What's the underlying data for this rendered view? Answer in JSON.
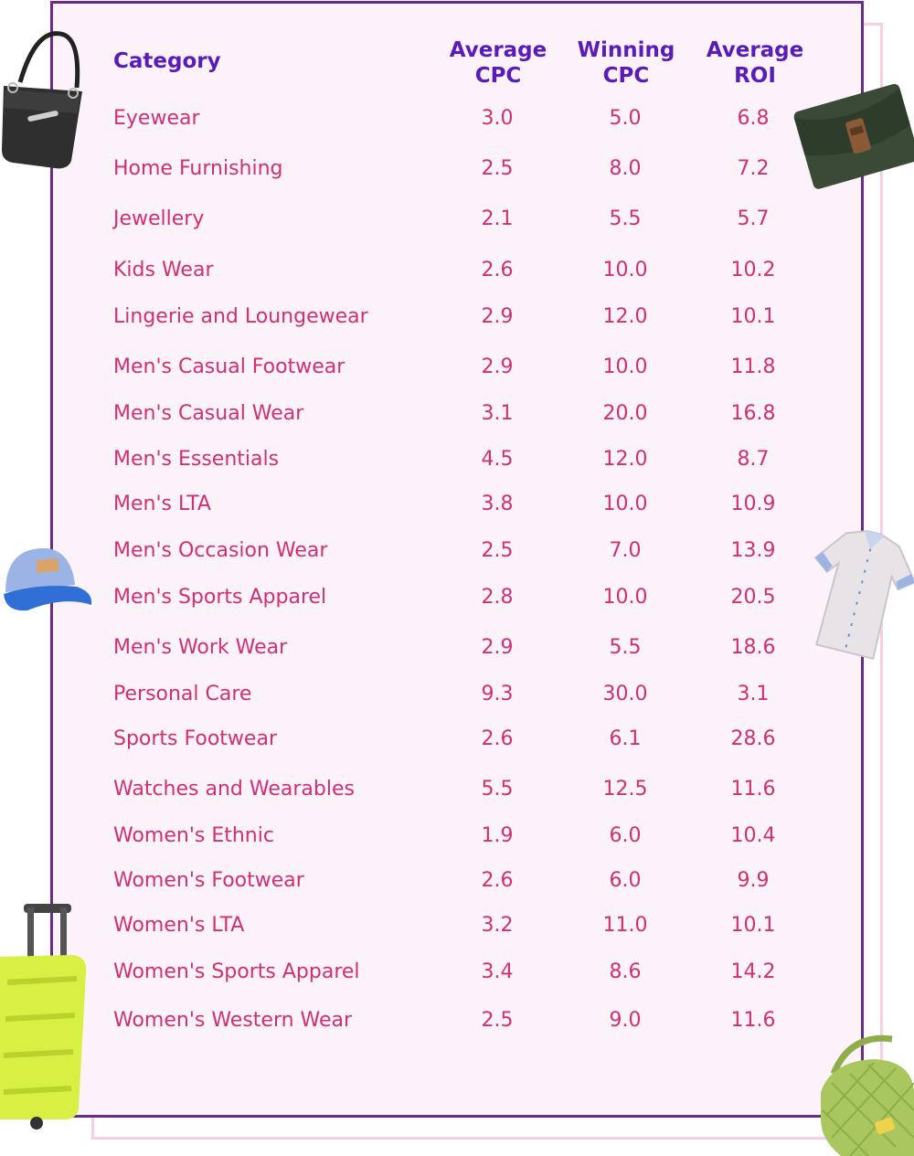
{
  "table": {
    "headers": {
      "category": "Category",
      "avg_cpc": [
        "Average",
        "CPC"
      ],
      "win_cpc": [
        "Winning",
        "CPC"
      ],
      "avg_roi": [
        "Average",
        "ROI"
      ]
    }
  },
  "chart_data": {
    "type": "table",
    "columns": [
      "Category",
      "Average CPC",
      "Winning CPC",
      "Average ROI"
    ],
    "rows": [
      [
        "Eyewear",
        "3.0",
        "5.0",
        "6.8"
      ],
      [
        "Home Furnishing",
        "2.5",
        "8.0",
        "7.2"
      ],
      [
        "Jewellery",
        "2.1",
        "5.5",
        "5.7"
      ],
      [
        "Kids Wear",
        "2.6",
        "10.0",
        "10.2"
      ],
      [
        "Lingerie and Loungewear",
        "2.9",
        "12.0",
        "10.1"
      ],
      [
        "Men's Casual Footwear",
        "2.9",
        "10.0",
        "11.8"
      ],
      [
        "Men's Casual Wear",
        "3.1",
        "20.0",
        "16.8"
      ],
      [
        "Men's Essentials",
        "4.5",
        "12.0",
        "8.7"
      ],
      [
        "Men's LTA",
        "3.8",
        "10.0",
        "10.9"
      ],
      [
        "Men's Occasion Wear",
        "2.5",
        "7.0",
        "13.9"
      ],
      [
        "Men's Sports Apparel",
        "2.8",
        "10.0",
        "20.5"
      ],
      [
        "Men's Work Wear",
        "2.9",
        "5.5",
        "18.6"
      ],
      [
        "Personal Care",
        "9.3",
        "30.0",
        "3.1"
      ],
      [
        "Sports Footwear",
        "2.6",
        "6.1",
        "28.6"
      ],
      [
        "Watches and Wearables",
        "5.5",
        "12.5",
        "11.6"
      ],
      [
        "Women's Ethnic",
        "1.9",
        "6.0",
        "10.4"
      ],
      [
        "Women's Footwear",
        "2.6",
        "6.0",
        "9.9"
      ],
      [
        "Women's LTA",
        "3.2",
        "11.0",
        "10.1"
      ],
      [
        "Women's Sports Apparel",
        "3.4",
        "8.6",
        "14.2"
      ],
      [
        "Women's Western Wear",
        "2.5",
        "9.0",
        "11.6"
      ]
    ]
  },
  "colors": {
    "header": "#5a1bb8",
    "body_text": "#d12f73",
    "card_border": "#6b2a85",
    "card_fill": "#fbf3f9",
    "back_card_border": "#f6cfe6"
  },
  "decorations": [
    "handbag-icon",
    "clutch-bag-icon",
    "cap-icon",
    "shirt-icon",
    "suitcase-icon",
    "duffel-bag-icon"
  ]
}
